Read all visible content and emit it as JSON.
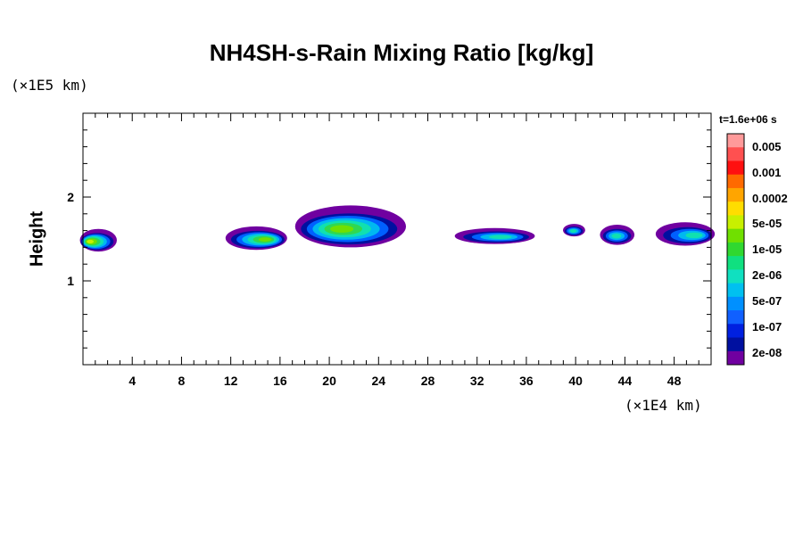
{
  "title": "NH4SH-s-Rain Mixing Ratio [kg/kg]",
  "time_label": "t=1.6e+06 s",
  "y_unit": "(×1E5 km)",
  "x_unit": "(×1E4 km)",
  "chart_data": {
    "type": "heatmap",
    "title": "NH4SH-s-Rain Mixing Ratio [kg/kg]",
    "xlabel": "",
    "ylabel": "Height",
    "x_unit_label": "(×1E4 km)",
    "y_unit_label": "(×1E5 km)",
    "xlim": [
      0,
      51
    ],
    "ylim": [
      0,
      3
    ],
    "x_ticks": [
      4,
      8,
      12,
      16,
      20,
      24,
      28,
      32,
      36,
      40,
      44,
      48
    ],
    "y_ticks": [
      1,
      2
    ],
    "colorbar": {
      "labels": [
        "0.005",
        "0.001",
        "0.0002",
        "5e-05",
        "1e-05",
        "2e-06",
        "5e-07",
        "1e-07",
        "2e-08"
      ],
      "colors": [
        "#ff9a9a",
        "#ff5050",
        "#ff1010",
        "#ff6a00",
        "#ffa500",
        "#ffdd00",
        "#c8f000",
        "#70e000",
        "#30d830",
        "#10e080",
        "#10e0c0",
        "#00c0f0",
        "#0090ff",
        "#1060ff",
        "#0020e0",
        "#0010a0",
        "#7000a0"
      ]
    },
    "cells": [
      {
        "x": [
          0,
          3
        ],
        "y": [
          1.35,
          1.62
        ],
        "peak": "5e-05",
        "center": 0.5
      },
      {
        "x": [
          11.3,
          16.3
        ],
        "y": [
          1.37,
          1.65
        ],
        "peak": "1e-05",
        "center": 14.9
      },
      {
        "x": [
          17.5,
          26.5
        ],
        "y": [
          1.4,
          1.9
        ],
        "peak": "1e-05",
        "center": 20.9
      },
      {
        "x": [
          30,
          36.5
        ],
        "y": [
          1.44,
          1.63
        ],
        "peak": "2e-06",
        "center": 34
      },
      {
        "x": [
          39,
          40.8
        ],
        "y": [
          1.53,
          1.68
        ],
        "peak": "2e-06",
        "center": 39.8
      },
      {
        "x": [
          42,
          44.8
        ],
        "y": [
          1.43,
          1.67
        ],
        "peak": "2e-06",
        "center": 43.3
      },
      {
        "x": [
          46.2,
          51
        ],
        "y": [
          1.42,
          1.7
        ],
        "peak": "2e-06",
        "center": 49.8
      }
    ]
  }
}
